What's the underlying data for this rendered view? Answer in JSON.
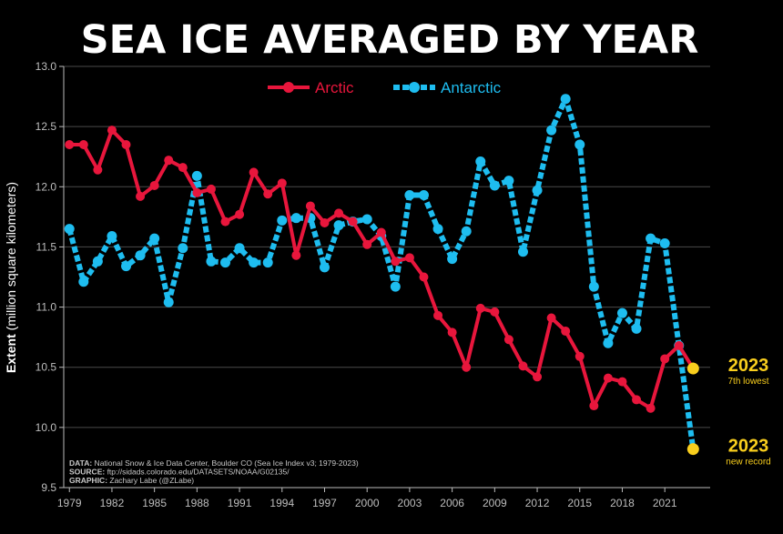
{
  "chart_data": {
    "type": "line",
    "title": "SEA ICE AVERAGED BY YEAR",
    "ylabel_bold": "Extent",
    "ylabel_rest": " (million square kilometers)",
    "xlabel": "",
    "ylim": [
      9.5,
      13.0
    ],
    "xlim": [
      1978.6,
      2024.2
    ],
    "y_ticks": [
      9.5,
      10.0,
      10.5,
      11.0,
      11.5,
      12.0,
      12.5,
      13.0
    ],
    "y_tick_labels": [
      "9.5",
      "10.0",
      "10.5",
      "11.0",
      "11.5",
      "12.0",
      "12.5",
      "13.0"
    ],
    "x_ticks": [
      1979,
      1982,
      1985,
      1988,
      1991,
      1994,
      1997,
      2000,
      2003,
      2006,
      2009,
      2012,
      2015,
      2018,
      2021
    ],
    "x_tick_labels": [
      "1979",
      "1982",
      "1985",
      "1988",
      "1991",
      "1994",
      "1997",
      "2000",
      "2003",
      "2006",
      "2009",
      "2012",
      "2015",
      "2018",
      "2021"
    ],
    "grid": true,
    "legend_position": "top-center",
    "x": [
      1979,
      1980,
      1981,
      1982,
      1983,
      1984,
      1985,
      1986,
      1987,
      1988,
      1989,
      1990,
      1991,
      1992,
      1993,
      1994,
      1995,
      1996,
      1997,
      1998,
      1999,
      2000,
      2001,
      2002,
      2003,
      2004,
      2005,
      2006,
      2007,
      2008,
      2009,
      2010,
      2011,
      2012,
      2013,
      2014,
      2015,
      2016,
      2017,
      2018,
      2019,
      2020,
      2021,
      2022,
      2023
    ],
    "series": [
      {
        "name": "Arctic",
        "color": "#e8163c",
        "style": "solid",
        "values": [
          12.35,
          12.35,
          12.14,
          12.47,
          12.35,
          11.92,
          12.01,
          12.22,
          12.16,
          11.95,
          11.98,
          11.71,
          11.77,
          12.12,
          11.94,
          12.03,
          11.43,
          11.84,
          11.7,
          11.78,
          11.71,
          11.52,
          11.62,
          11.38,
          11.41,
          11.25,
          10.93,
          10.79,
          10.5,
          10.99,
          10.96,
          10.73,
          10.51,
          10.42,
          10.91,
          10.8,
          10.59,
          10.18,
          10.41,
          10.38,
          10.23,
          10.16,
          10.57,
          10.68,
          10.49
        ]
      },
      {
        "name": "Antarctic",
        "color": "#1ebdf0",
        "style": "dashed",
        "values": [
          11.65,
          11.21,
          11.38,
          11.59,
          11.34,
          11.43,
          11.57,
          11.04,
          11.49,
          12.09,
          11.38,
          11.37,
          11.49,
          11.37,
          11.37,
          11.72,
          11.74,
          11.74,
          11.33,
          11.68,
          11.71,
          11.73,
          11.59,
          11.17,
          11.93,
          11.93,
          11.65,
          11.4,
          11.63,
          12.21,
          12.01,
          12.05,
          11.46,
          11.97,
          12.47,
          12.73,
          12.35,
          11.17,
          10.7,
          10.95,
          10.82,
          11.57,
          11.53,
          10.68,
          9.82
        ]
      }
    ],
    "highlights": [
      {
        "series": "Arctic",
        "year": 2023,
        "value": 10.49,
        "label": "2023",
        "sublabel": "7th lowest",
        "color": "#f9ce1d"
      },
      {
        "series": "Antarctic",
        "year": 2023,
        "value": 9.82,
        "label": "2023",
        "sublabel": "new record",
        "color": "#f9ce1d"
      }
    ],
    "credits": [
      {
        "bold": "DATA:",
        "text": " National Snow & Ice Data Center, Boulder CO (Sea Ice Index v3; 1979-2023)"
      },
      {
        "bold": "SOURCE:",
        "text": " ftp://sidads.colorado.edu/DATASETS/NOAA/G02135/"
      },
      {
        "bold": "GRAPHIC:",
        "text": " Zachary Labe (@ZLabe)"
      }
    ]
  }
}
